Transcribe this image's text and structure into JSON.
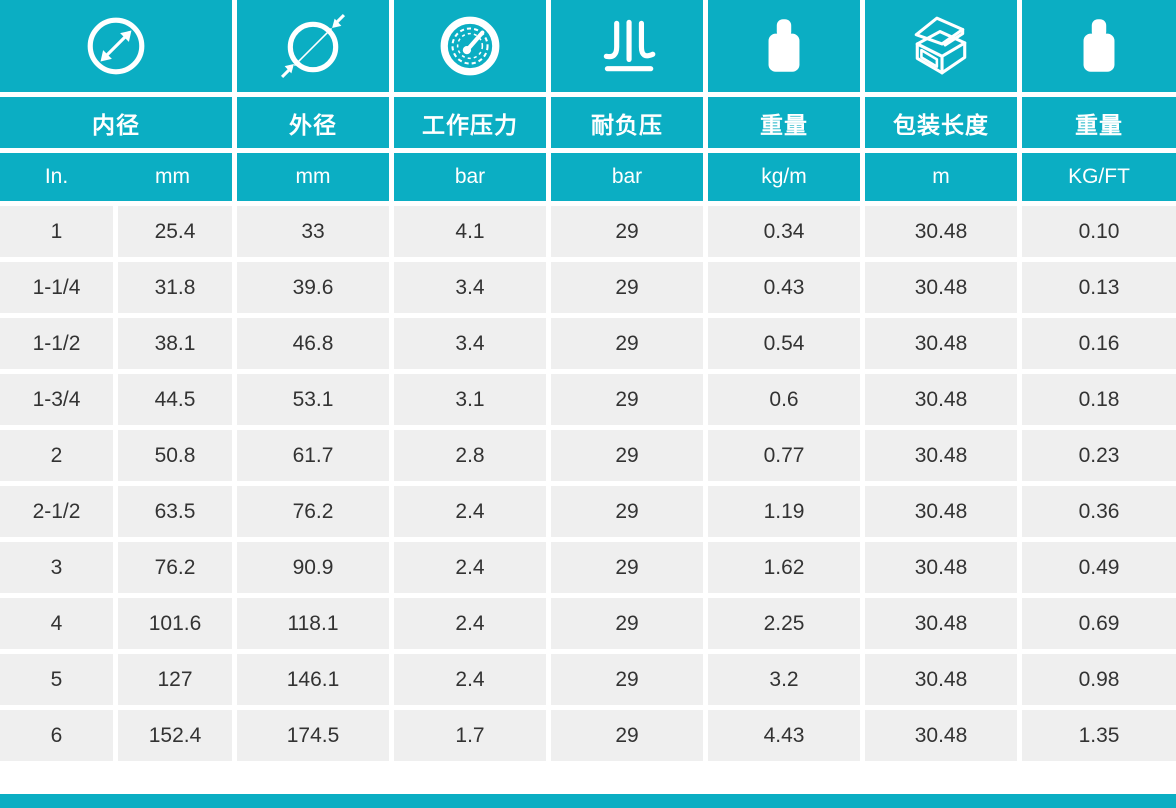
{
  "theme": {
    "accent_teal": "#0BAEC3",
    "row_gray": "#EFEFEF",
    "text_dark": "#333333",
    "gap_white": "#FFFFFF"
  },
  "table": {
    "columns": [
      {
        "icon": "inner-diameter-icon",
        "title": "内径",
        "units": [
          "In.",
          "mm"
        ]
      },
      {
        "icon": "outer-diameter-icon",
        "title": "外径",
        "unit": "mm"
      },
      {
        "icon": "pressure-gauge-icon",
        "title": "工作压力",
        "unit": "bar"
      },
      {
        "icon": "vacuum-resistance-icon",
        "title": "耐负压",
        "unit": "bar"
      },
      {
        "icon": "weight-icon",
        "title": "重量",
        "unit": "kg/m"
      },
      {
        "icon": "package-box-icon",
        "title": "包装长度",
        "unit": "m"
      },
      {
        "icon": "weight-icon",
        "title": "重量",
        "unit": "KG/FT"
      }
    ],
    "rows": [
      [
        "1",
        "25.4",
        "33",
        "4.1",
        "29",
        "0.34",
        "30.48",
        "0.10"
      ],
      [
        "1-1/4",
        "31.8",
        "39.6",
        "3.4",
        "29",
        "0.43",
        "30.48",
        "0.13"
      ],
      [
        "1-1/2",
        "38.1",
        "46.8",
        "3.4",
        "29",
        "0.54",
        "30.48",
        "0.16"
      ],
      [
        "1-3/4",
        "44.5",
        "53.1",
        "3.1",
        "29",
        "0.6",
        "30.48",
        "0.18"
      ],
      [
        "2",
        "50.8",
        "61.7",
        "2.8",
        "29",
        "0.77",
        "30.48",
        "0.23"
      ],
      [
        "2-1/2",
        "63.5",
        "76.2",
        "2.4",
        "29",
        "1.19",
        "30.48",
        "0.36"
      ],
      [
        "3",
        "76.2",
        "90.9",
        "2.4",
        "29",
        "1.62",
        "30.48",
        "0.49"
      ],
      [
        "4",
        "101.6",
        "118.1",
        "2.4",
        "29",
        "2.25",
        "30.48",
        "0.69"
      ],
      [
        "5",
        "127",
        "146.1",
        "2.4",
        "29",
        "3.2",
        "30.48",
        "0.98"
      ],
      [
        "6",
        "152.4",
        "174.5",
        "1.7",
        "29",
        "4.43",
        "30.48",
        "1.35"
      ]
    ]
  }
}
